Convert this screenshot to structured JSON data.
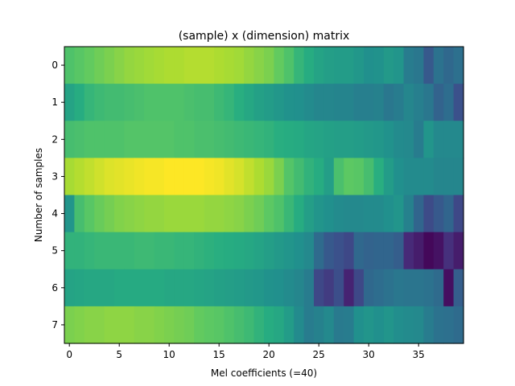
{
  "chart_data": {
    "type": "heatmap",
    "title": "(sample) x (dimension) matrix",
    "xlabel": "Mel coefficients (=40)",
    "ylabel": "Number of samples",
    "x_ticks": [
      0,
      5,
      10,
      15,
      20,
      25,
      30,
      35
    ],
    "y_ticks": [
      0,
      1,
      2,
      3,
      4,
      5,
      6,
      7
    ],
    "n_cols": 40,
    "n_rows": 8,
    "colormap": "viridis",
    "vmin": 0,
    "vmax": 1,
    "values": [
      [
        0.72,
        0.74,
        0.76,
        0.78,
        0.8,
        0.82,
        0.84,
        0.85,
        0.86,
        0.87,
        0.88,
        0.88,
        0.89,
        0.89,
        0.89,
        0.88,
        0.87,
        0.86,
        0.84,
        0.82,
        0.8,
        0.76,
        0.72,
        0.66,
        0.62,
        0.58,
        0.56,
        0.55,
        0.55,
        0.53,
        0.5,
        0.51,
        0.54,
        0.52,
        0.42,
        0.4,
        0.28,
        0.38,
        0.34,
        0.37
      ],
      [
        0.58,
        0.62,
        0.66,
        0.68,
        0.69,
        0.69,
        0.7,
        0.71,
        0.72,
        0.72,
        0.72,
        0.72,
        0.71,
        0.7,
        0.7,
        0.68,
        0.66,
        0.63,
        0.6,
        0.57,
        0.55,
        0.53,
        0.51,
        0.5,
        0.48,
        0.46,
        0.46,
        0.45,
        0.45,
        0.43,
        0.43,
        0.44,
        0.4,
        0.42,
        0.46,
        0.43,
        0.4,
        0.32,
        0.36,
        0.25
      ],
      [
        0.7,
        0.71,
        0.72,
        0.72,
        0.72,
        0.72,
        0.73,
        0.73,
        0.73,
        0.73,
        0.73,
        0.72,
        0.72,
        0.71,
        0.71,
        0.7,
        0.69,
        0.68,
        0.67,
        0.66,
        0.65,
        0.63,
        0.62,
        0.61,
        0.59,
        0.58,
        0.57,
        0.56,
        0.56,
        0.55,
        0.54,
        0.53,
        0.51,
        0.48,
        0.47,
        0.42,
        0.52,
        0.47,
        0.47,
        0.47
      ],
      [
        0.87,
        0.89,
        0.91,
        0.93,
        0.95,
        0.96,
        0.97,
        0.98,
        0.99,
        0.99,
        1.0,
        1.0,
        1.0,
        1.0,
        0.99,
        0.98,
        0.96,
        0.94,
        0.91,
        0.88,
        0.85,
        0.8,
        0.73,
        0.69,
        0.65,
        0.62,
        0.56,
        0.71,
        0.75,
        0.74,
        0.7,
        0.63,
        0.55,
        0.5,
        0.48,
        0.48,
        0.48,
        0.46,
        0.46,
        0.46
      ],
      [
        0.52,
        0.7,
        0.74,
        0.77,
        0.79,
        0.81,
        0.82,
        0.83,
        0.84,
        0.84,
        0.85,
        0.85,
        0.85,
        0.85,
        0.84,
        0.84,
        0.83,
        0.82,
        0.8,
        0.78,
        0.75,
        0.72,
        0.67,
        0.62,
        0.56,
        0.52,
        0.5,
        0.48,
        0.47,
        0.47,
        0.48,
        0.48,
        0.5,
        0.52,
        0.44,
        0.33,
        0.23,
        0.28,
        0.33,
        0.22
      ],
      [
        0.65,
        0.65,
        0.66,
        0.67,
        0.67,
        0.67,
        0.67,
        0.68,
        0.68,
        0.67,
        0.67,
        0.66,
        0.66,
        0.65,
        0.64,
        0.63,
        0.62,
        0.61,
        0.6,
        0.58,
        0.56,
        0.54,
        0.52,
        0.5,
        0.47,
        0.35,
        0.28,
        0.25,
        0.22,
        0.34,
        0.32,
        0.33,
        0.33,
        0.3,
        0.12,
        0.08,
        0.02,
        0.05,
        0.14,
        0.08
      ],
      [
        0.58,
        0.59,
        0.6,
        0.6,
        0.6,
        0.61,
        0.61,
        0.61,
        0.61,
        0.61,
        0.6,
        0.6,
        0.6,
        0.59,
        0.58,
        0.57,
        0.56,
        0.55,
        0.54,
        0.53,
        0.51,
        0.5,
        0.48,
        0.46,
        0.42,
        0.22,
        0.18,
        0.24,
        0.1,
        0.22,
        0.34,
        0.36,
        0.38,
        0.4,
        0.39,
        0.39,
        0.38,
        0.35,
        0.04,
        0.3
      ],
      [
        0.8,
        0.81,
        0.82,
        0.82,
        0.83,
        0.83,
        0.83,
        0.82,
        0.82,
        0.81,
        0.8,
        0.79,
        0.78,
        0.76,
        0.75,
        0.74,
        0.72,
        0.7,
        0.68,
        0.65,
        0.62,
        0.6,
        0.55,
        0.48,
        0.42,
        0.44,
        0.47,
        0.41,
        0.42,
        0.5,
        0.52,
        0.5,
        0.52,
        0.49,
        0.48,
        0.47,
        0.42,
        0.38,
        0.37,
        0.35
      ]
    ]
  }
}
